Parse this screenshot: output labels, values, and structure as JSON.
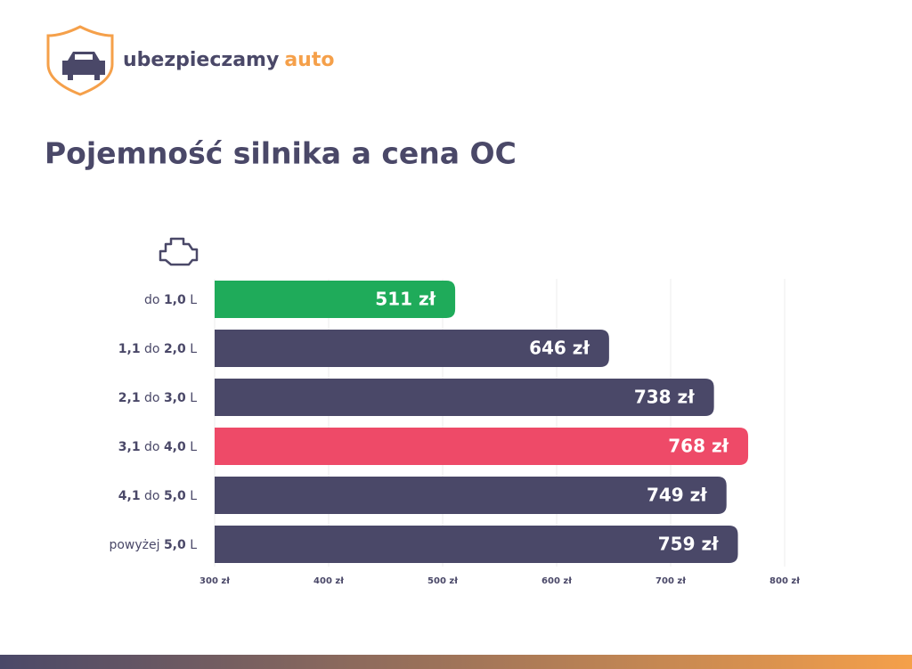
{
  "logo": {
    "text": "ubezpieczamy",
    "accent": "auto"
  },
  "chart_data": {
    "type": "bar",
    "orientation": "horizontal",
    "title": "Pojemność silnika a cena OC",
    "categories": [
      "do 1,0 L",
      "1,1 do 2,0 L",
      "2,1 do 3,0 L",
      "3,1 do 4,0 L",
      "4,1 do 5,0 L",
      "powyżej 5,0 L"
    ],
    "values": [
      511,
      646,
      738,
      768,
      749,
      759
    ],
    "value_labels": [
      "511 zł",
      "646 zł",
      "738 zł",
      "768 zł",
      "749 zł",
      "759 zł"
    ],
    "colors": [
      "#1fab5a",
      "#4a4868",
      "#4a4868",
      "#ee4a68",
      "#4a4868",
      "#4a4868"
    ],
    "xlim": [
      300,
      800
    ],
    "xticks": [
      {
        "value": 300,
        "label": "300 zł"
      },
      {
        "value": 400,
        "label": "400 zł"
      },
      {
        "value": 500,
        "label": "500 zł"
      },
      {
        "value": 600,
        "label": "600 zł"
      },
      {
        "value": 700,
        "label": "700 zł"
      },
      {
        "value": 800,
        "label": "800 zł"
      }
    ],
    "grid": true
  }
}
